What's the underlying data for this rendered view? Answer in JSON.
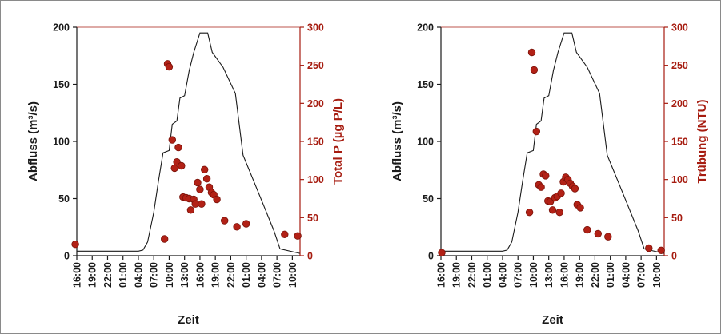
{
  "colors": {
    "axis": "#1a1a1a",
    "point_fill": "#b22116",
    "point_stroke": "#7a1209",
    "right_axis": "#a61c10",
    "top_line": "#a61c10"
  },
  "chart_data": [
    {
      "type": "scatter",
      "xlabel": "Zeit",
      "ylabel_left": "Abfluss (m³/s)",
      "ylabel_right": "Total P (µg P/L)",
      "x_ticks": [
        "16:00",
        "19:00",
        "22:00",
        "01:00",
        "04:00",
        "07:00",
        "10:00",
        "13:00",
        "16:00",
        "19:00",
        "22:00",
        "01:00",
        "04:00",
        "07:00",
        "10:00"
      ],
      "xlim": [
        0,
        14.5
      ],
      "ylim_left": [
        0,
        200
      ],
      "ylim_right": [
        0,
        300
      ],
      "y_ticks_left": [
        0,
        50,
        100,
        150,
        200
      ],
      "y_ticks_right": [
        0,
        50,
        100,
        150,
        200,
        250,
        300
      ],
      "grid": false,
      "series": [
        {
          "kind": "line",
          "axis": "left",
          "points": [
            [
              0,
              4
            ],
            [
              1,
              4
            ],
            [
              2,
              4
            ],
            [
              3,
              4
            ],
            [
              4,
              4
            ],
            [
              4.3,
              5
            ],
            [
              4.6,
              12
            ],
            [
              5,
              38
            ],
            [
              5.3,
              65
            ],
            [
              5.6,
              90
            ],
            [
              6,
              92
            ],
            [
              6.2,
              115
            ],
            [
              6.5,
              118
            ],
            [
              6.7,
              138
            ],
            [
              7,
              140
            ],
            [
              7.3,
              162
            ],
            [
              7.6,
              178
            ],
            [
              8,
              195
            ],
            [
              8.5,
              195
            ],
            [
              8.8,
              178
            ],
            [
              9.5,
              165
            ],
            [
              10.3,
              142
            ],
            [
              10.8,
              88
            ],
            [
              11.5,
              65
            ],
            [
              12.2,
              42
            ],
            [
              12.8,
              22
            ],
            [
              13.2,
              6
            ],
            [
              14.5,
              2
            ]
          ]
        },
        {
          "kind": "points",
          "axis": "right",
          "points": [
            [
              -0.1,
              15
            ],
            [
              5.7,
              22
            ],
            [
              5.9,
              252
            ],
            [
              6.0,
              248
            ],
            [
              6.2,
              152
            ],
            [
              6.35,
              115
            ],
            [
              6.5,
              123
            ],
            [
              6.6,
              142
            ],
            [
              6.8,
              118
            ],
            [
              6.9,
              77
            ],
            [
              7.1,
              76
            ],
            [
              7.3,
              75
            ],
            [
              7.4,
              60
            ],
            [
              7.6,
              74
            ],
            [
              7.7,
              68
            ],
            [
              7.85,
              96
            ],
            [
              8.0,
              87
            ],
            [
              8.1,
              68
            ],
            [
              8.3,
              113
            ],
            [
              8.45,
              101
            ],
            [
              8.6,
              90
            ],
            [
              8.75,
              83
            ],
            [
              8.9,
              80
            ],
            [
              9.1,
              74
            ],
            [
              9.6,
              46
            ],
            [
              10.4,
              38
            ],
            [
              11.0,
              42
            ],
            [
              13.5,
              28
            ],
            [
              14.35,
              26
            ]
          ]
        }
      ]
    },
    {
      "type": "scatter",
      "xlabel": "Zeit",
      "ylabel_left": "Abfluss (m³/s)",
      "ylabel_right": "Trübung (NTU)",
      "x_ticks": [
        "16:00",
        "19:00",
        "22:00",
        "01:00",
        "04:00",
        "07:00",
        "10:00",
        "13:00",
        "16:00",
        "19:00",
        "22:00",
        "01:00",
        "04:00",
        "07:00",
        "10:00"
      ],
      "xlim": [
        0,
        14.5
      ],
      "ylim_left": [
        0,
        200
      ],
      "ylim_right": [
        0,
        300
      ],
      "y_ticks_left": [
        0,
        50,
        100,
        150,
        200
      ],
      "y_ticks_right": [
        0,
        50,
        100,
        150,
        200,
        250,
        300
      ],
      "grid": false,
      "series": [
        {
          "kind": "line",
          "axis": "left",
          "points": [
            [
              0,
              4
            ],
            [
              1,
              4
            ],
            [
              2,
              4
            ],
            [
              3,
              4
            ],
            [
              4,
              4
            ],
            [
              4.3,
              5
            ],
            [
              4.6,
              12
            ],
            [
              5,
              38
            ],
            [
              5.3,
              65
            ],
            [
              5.6,
              90
            ],
            [
              6,
              92
            ],
            [
              6.2,
              115
            ],
            [
              6.5,
              118
            ],
            [
              6.7,
              138
            ],
            [
              7,
              140
            ],
            [
              7.3,
              162
            ],
            [
              7.6,
              178
            ],
            [
              8,
              195
            ],
            [
              8.5,
              195
            ],
            [
              8.8,
              178
            ],
            [
              9.5,
              165
            ],
            [
              10.3,
              142
            ],
            [
              10.8,
              88
            ],
            [
              11.5,
              65
            ],
            [
              12.2,
              42
            ],
            [
              12.8,
              22
            ],
            [
              13.2,
              6
            ],
            [
              14.5,
              2
            ]
          ]
        },
        {
          "kind": "points",
          "axis": "right",
          "points": [
            [
              0.05,
              4
            ],
            [
              5.75,
              57
            ],
            [
              5.9,
              267
            ],
            [
              6.05,
              244
            ],
            [
              6.2,
              163
            ],
            [
              6.35,
              93
            ],
            [
              6.5,
              90
            ],
            [
              6.65,
              107
            ],
            [
              6.8,
              105
            ],
            [
              6.95,
              72
            ],
            [
              7.1,
              71
            ],
            [
              7.25,
              60
            ],
            [
              7.4,
              76
            ],
            [
              7.55,
              78
            ],
            [
              7.7,
              57
            ],
            [
              7.8,
              82
            ],
            [
              7.95,
              97
            ],
            [
              8.1,
              103
            ],
            [
              8.25,
              100
            ],
            [
              8.4,
              95
            ],
            [
              8.55,
              91
            ],
            [
              8.7,
              88
            ],
            [
              8.85,
              67
            ],
            [
              9.05,
              63
            ],
            [
              9.5,
              34
            ],
            [
              10.2,
              29
            ],
            [
              10.85,
              25
            ],
            [
              13.5,
              10
            ],
            [
              14.3,
              7
            ]
          ]
        }
      ]
    }
  ]
}
